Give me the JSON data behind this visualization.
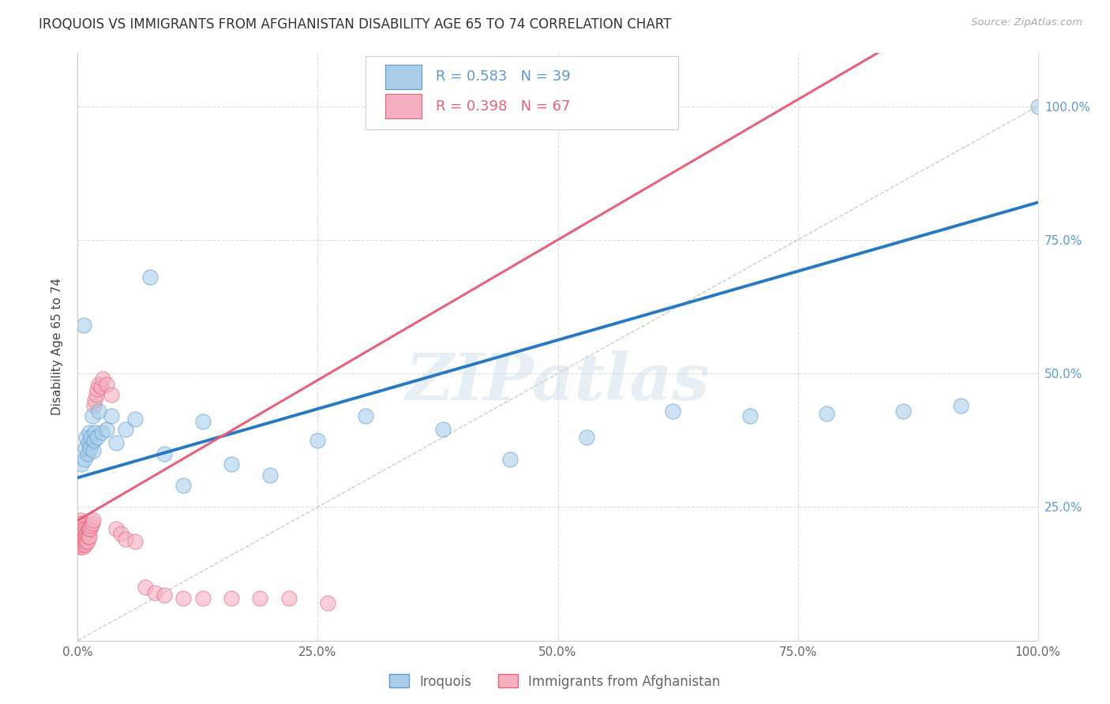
{
  "title": "IROQUOIS VS IMMIGRANTS FROM AFGHANISTAN DISABILITY AGE 65 TO 74 CORRELATION CHART",
  "source": "Source: ZipAtlas.com",
  "ylabel": "Disability Age 65 to 74",
  "watermark": "ZIPatlas",
  "legend_1_label": "Iroquois",
  "legend_2_label": "Immigrants from Afghanistan",
  "R1": 0.583,
  "N1": 39,
  "R2": 0.398,
  "N2": 67,
  "color_blue_fill": "#aacde8",
  "color_pink_fill": "#f4afc0",
  "color_blue_edge": "#5b9bd5",
  "color_pink_edge": "#e8607a",
  "color_blue_line": "#2779c4",
  "color_pink_line": "#e8607a",
  "iroquois_x": [
    0.004,
    0.006,
    0.007,
    0.008,
    0.009,
    0.01,
    0.011,
    0.012,
    0.013,
    0.014,
    0.015,
    0.016,
    0.017,
    0.018,
    0.02,
    0.022,
    0.025,
    0.03,
    0.035,
    0.04,
    0.05,
    0.06,
    0.075,
    0.09,
    0.11,
    0.13,
    0.16,
    0.2,
    0.25,
    0.3,
    0.38,
    0.45,
    0.53,
    0.62,
    0.7,
    0.78,
    0.86,
    0.92,
    1.0
  ],
  "iroquois_y": [
    0.33,
    0.59,
    0.34,
    0.36,
    0.38,
    0.35,
    0.37,
    0.39,
    0.36,
    0.38,
    0.42,
    0.355,
    0.375,
    0.39,
    0.38,
    0.43,
    0.39,
    0.395,
    0.42,
    0.37,
    0.395,
    0.415,
    0.68,
    0.35,
    0.29,
    0.41,
    0.33,
    0.31,
    0.375,
    0.42,
    0.395,
    0.34,
    0.38,
    0.43,
    0.42,
    0.425,
    0.43,
    0.44,
    1.0
  ],
  "afghanistan_x": [
    0.001,
    0.001,
    0.001,
    0.002,
    0.002,
    0.002,
    0.002,
    0.003,
    0.003,
    0.003,
    0.003,
    0.003,
    0.003,
    0.004,
    0.004,
    0.004,
    0.004,
    0.004,
    0.005,
    0.005,
    0.005,
    0.005,
    0.005,
    0.006,
    0.006,
    0.006,
    0.006,
    0.007,
    0.007,
    0.007,
    0.008,
    0.008,
    0.008,
    0.009,
    0.009,
    0.01,
    0.01,
    0.011,
    0.011,
    0.012,
    0.012,
    0.013,
    0.014,
    0.015,
    0.016,
    0.017,
    0.018,
    0.019,
    0.02,
    0.022,
    0.024,
    0.026,
    0.03,
    0.035,
    0.04,
    0.045,
    0.05,
    0.06,
    0.07,
    0.08,
    0.09,
    0.11,
    0.13,
    0.16,
    0.19,
    0.22,
    0.26
  ],
  "afghanistan_y": [
    0.2,
    0.215,
    0.22,
    0.18,
    0.195,
    0.205,
    0.215,
    0.175,
    0.185,
    0.195,
    0.205,
    0.215,
    0.225,
    0.18,
    0.19,
    0.2,
    0.21,
    0.22,
    0.175,
    0.185,
    0.195,
    0.205,
    0.215,
    0.18,
    0.19,
    0.2,
    0.21,
    0.185,
    0.195,
    0.205,
    0.18,
    0.195,
    0.21,
    0.185,
    0.2,
    0.185,
    0.205,
    0.195,
    0.21,
    0.195,
    0.21,
    0.21,
    0.215,
    0.22,
    0.225,
    0.44,
    0.45,
    0.46,
    0.47,
    0.48,
    0.475,
    0.49,
    0.48,
    0.46,
    0.21,
    0.2,
    0.19,
    0.185,
    0.1,
    0.09,
    0.085,
    0.08,
    0.08,
    0.08,
    0.08,
    0.08,
    0.07
  ],
  "xmin": 0.0,
  "xmax": 1.0,
  "ymin": 0.0,
  "ymax": 1.1
}
